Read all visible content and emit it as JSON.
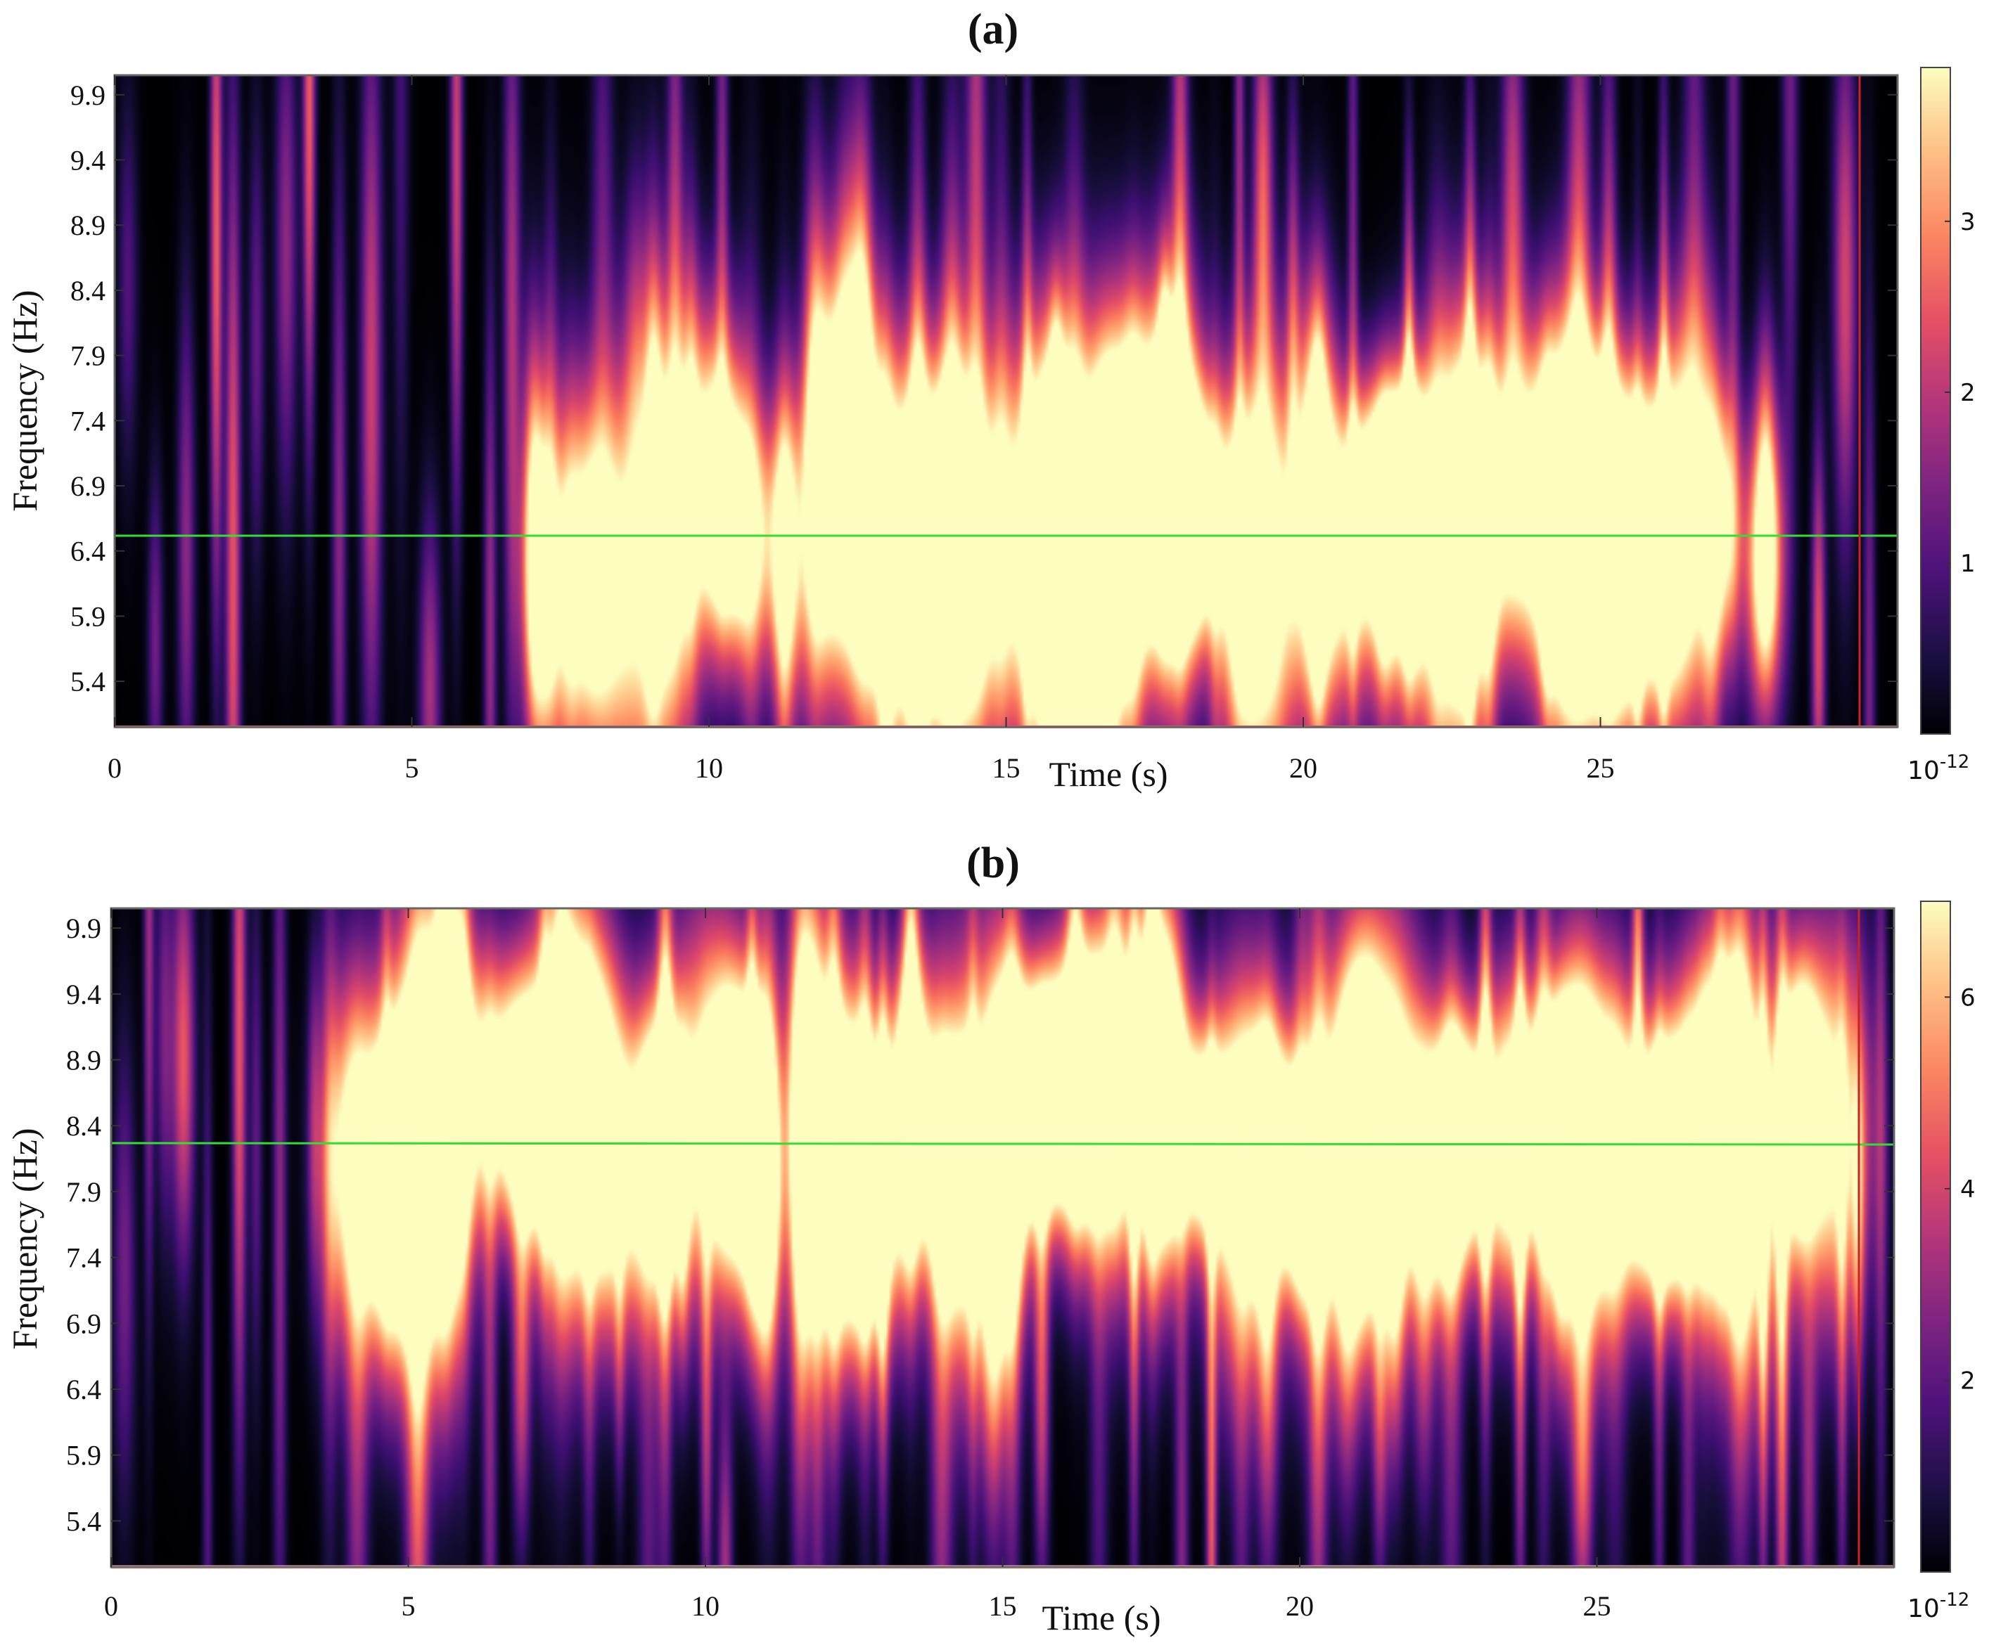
{
  "chart_data": [
    {
      "type": "heatmap",
      "title": "(a)",
      "xlabel": "Time (s)",
      "ylabel": "Frequency (Hz)",
      "x_ticks": [
        0,
        5,
        10,
        15,
        20,
        25
      ],
      "x_tick_labels": [
        "0",
        "5",
        "10",
        "15",
        "20",
        "25"
      ],
      "xlim": [
        0,
        30
      ],
      "y_ticks": [
        5.4,
        5.9,
        6.4,
        6.9,
        7.4,
        7.9,
        8.4,
        8.9,
        9.4,
        9.9
      ],
      "y_tick_labels": [
        "5.4",
        "5.9",
        "6.4",
        "6.9",
        "7.4",
        "7.9",
        "8.4",
        "8.9",
        "9.4",
        "9.9"
      ],
      "ylim": [
        5.05,
        10.05
      ],
      "colormap": "magma",
      "colorbar": {
        "min": 0,
        "max": 3.9,
        "ticks": [
          1,
          2,
          3
        ],
        "tick_labels": [
          "1",
          "2",
          "3"
        ],
        "exponent_label": "10",
        "exponent_power": "-12"
      },
      "ridge_line": {
        "frequency": 6.55,
        "color": "#33dd33"
      },
      "marker_line": {
        "time": 29.4,
        "color": "#cc2222"
      },
      "bright_band": {
        "center_frequency": 6.55,
        "onset_time": 7.2,
        "end_time": 28.0
      },
      "colors": {
        "ridge": "#33dd33",
        "marker": "#cc2222"
      }
    },
    {
      "type": "heatmap",
      "title": "(b)",
      "xlabel": "Time (s)",
      "ylabel": "Frequency (Hz)",
      "x_ticks": [
        0,
        5,
        10,
        15,
        20,
        25
      ],
      "x_tick_labels": [
        "0",
        "5",
        "10",
        "15",
        "20",
        "25"
      ],
      "xlim": [
        0,
        30
      ],
      "y_ticks": [
        5.4,
        5.9,
        6.4,
        6.9,
        7.4,
        7.9,
        8.4,
        8.9,
        9.4,
        9.9
      ],
      "y_tick_labels": [
        "5.4",
        "5.9",
        "6.4",
        "6.9",
        "7.4",
        "7.9",
        "8.4",
        "8.9",
        "9.4",
        "9.9"
      ],
      "ylim": [
        5.05,
        10.05
      ],
      "colormap": "magma",
      "colorbar": {
        "min": 0,
        "max": 7.0,
        "ticks": [
          2,
          4,
          6
        ],
        "tick_labels": [
          "2",
          "4",
          "6"
        ],
        "exponent_label": "10",
        "exponent_power": "-12"
      },
      "ridge_line": {
        "frequency": 8.3,
        "color": "#33dd33"
      },
      "marker_line": {
        "time": 29.4,
        "color": "#cc2222"
      },
      "bright_band": {
        "center_frequency": 8.3,
        "onset_time": 4.0,
        "end_time": 29.5
      },
      "colors": {
        "ridge": "#33dd33",
        "marker": "#cc2222"
      }
    }
  ]
}
